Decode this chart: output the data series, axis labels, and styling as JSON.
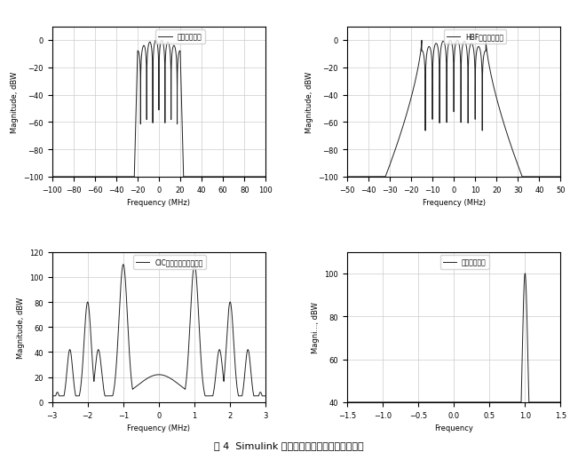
{
  "subplot1": {
    "title": "输入信号频谱",
    "xlabel": "Frequency (MHz)",
    "ylabel": "Magnitude, dBW",
    "xlim": [
      -100,
      100
    ],
    "ylim": [
      -100,
      10
    ],
    "yticks": [
      0,
      -20,
      -40,
      -60,
      -80,
      -100
    ],
    "xticks": [
      -100,
      -80,
      -60,
      -40,
      -20,
      0,
      20,
      40,
      60,
      80,
      100
    ]
  },
  "subplot2": {
    "title": "HBF输出信号频谱",
    "xlabel": "Frequency (MHz)",
    "ylabel": "Magnitude, dBW",
    "xlim": [
      -50,
      50
    ],
    "ylim": [
      -100,
      10
    ],
    "yticks": [
      0,
      -20,
      -40,
      -60,
      -80,
      -100
    ],
    "xticks": [
      -50,
      -40,
      -30,
      -20,
      -10,
      0,
      10,
      20,
      30,
      40,
      50
    ]
  },
  "subplot3": {
    "title": "CIC滤波器输出信号频谱",
    "xlabel": "Frequency (MHz)",
    "ylabel": "Magnitude, dBW",
    "xlim": [
      -3,
      3
    ],
    "ylim": [
      0,
      120
    ],
    "yticks": [
      0,
      20,
      40,
      60,
      80,
      100,
      120
    ],
    "xticks": [
      -3,
      -2,
      -1,
      0,
      1,
      2,
      3
    ]
  },
  "subplot4": {
    "title": "输出信号频谱",
    "xlabel": "Frequency",
    "ylabel": "Magni..., dBW",
    "xlim": [
      -1.5,
      1.5
    ],
    "ylim": [
      40,
      110
    ],
    "yticks": [
      40,
      60,
      80,
      100
    ],
    "xticks": [
      -1.5,
      -1,
      -0.5,
      0,
      0.5,
      1,
      1.5
    ]
  },
  "line_color": "#222222",
  "grid_color": "#cccccc",
  "caption": "图 4  Simulink 仳真各级输出信号的双边带频谱"
}
